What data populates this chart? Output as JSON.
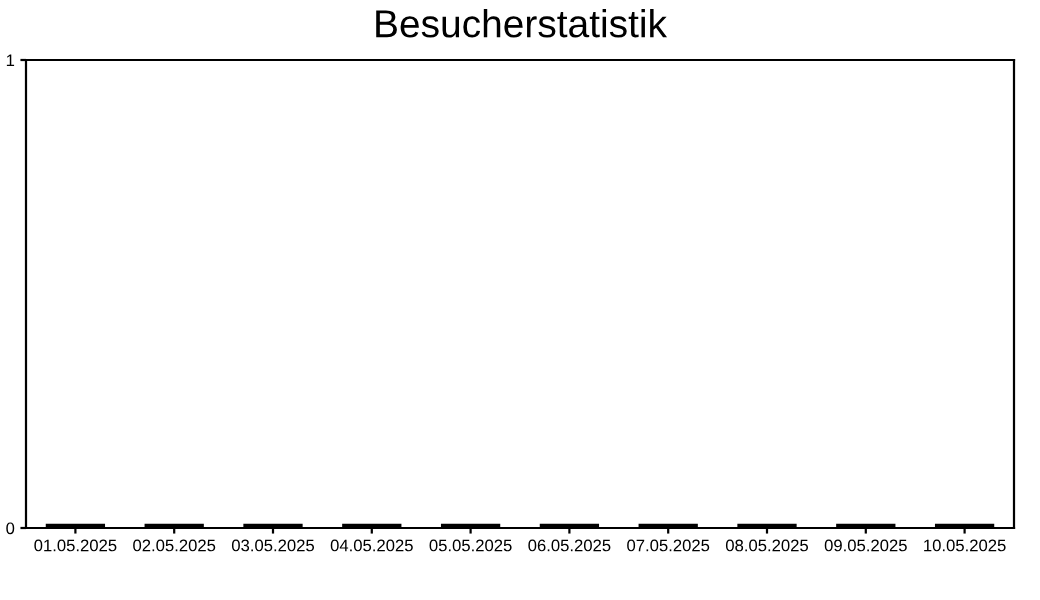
{
  "chart_data": {
    "type": "bar",
    "title": "Besucherstatistik",
    "categories": [
      "01.05.2025",
      "02.05.2025",
      "03.05.2025",
      "04.05.2025",
      "05.05.2025",
      "06.05.2025",
      "07.05.2025",
      "08.05.2025",
      "09.05.2025",
      "10.05.2025"
    ],
    "values": [
      0,
      0,
      0,
      0,
      0,
      0,
      0,
      0,
      0,
      0
    ],
    "color": "#000000",
    "ylim": [
      0,
      1
    ],
    "yticks": [
      0,
      1
    ],
    "grid": false,
    "legend": false
  }
}
